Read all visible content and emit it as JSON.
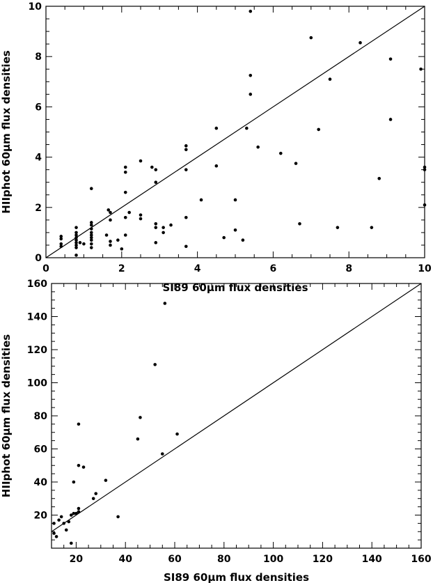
{
  "chart_data": [
    {
      "type": "scatter",
      "xlabel": "SI89 60μm flux densities",
      "ylabel": "HIIphot 60μm flux densities",
      "xlim": [
        0,
        10
      ],
      "ylim": [
        0,
        10
      ],
      "xticks": [
        0,
        2,
        4,
        6,
        8,
        10
      ],
      "yticks": [
        0,
        2,
        4,
        6,
        8,
        10
      ],
      "reference_line": "y = x",
      "points": [
        [
          0.4,
          0.85
        ],
        [
          0.4,
          0.75
        ],
        [
          0.4,
          0.55
        ],
        [
          0.4,
          0.45
        ],
        [
          0.8,
          1.2
        ],
        [
          0.8,
          1.0
        ],
        [
          0.8,
          0.9
        ],
        [
          0.8,
          0.8
        ],
        [
          0.8,
          0.7
        ],
        [
          0.8,
          0.6
        ],
        [
          0.8,
          0.5
        ],
        [
          0.8,
          0.4
        ],
        [
          0.8,
          0.1
        ],
        [
          0.9,
          0.6
        ],
        [
          1.0,
          0.55
        ],
        [
          1.2,
          2.75
        ],
        [
          1.2,
          1.4
        ],
        [
          1.2,
          1.3
        ],
        [
          1.2,
          1.15
        ],
        [
          1.2,
          1.0
        ],
        [
          1.2,
          0.9
        ],
        [
          1.2,
          0.8
        ],
        [
          1.2,
          0.7
        ],
        [
          1.2,
          0.55
        ],
        [
          1.2,
          0.4
        ],
        [
          1.6,
          0.9
        ],
        [
          1.65,
          1.9
        ],
        [
          1.7,
          1.8
        ],
        [
          1.7,
          1.5
        ],
        [
          1.7,
          0.65
        ],
        [
          1.7,
          0.5
        ],
        [
          1.9,
          0.7
        ],
        [
          2.0,
          0.35
        ],
        [
          2.1,
          3.6
        ],
        [
          2.1,
          3.4
        ],
        [
          2.1,
          2.6
        ],
        [
          2.1,
          1.6
        ],
        [
          2.1,
          0.9
        ],
        [
          2.2,
          1.8
        ],
        [
          2.5,
          3.85
        ],
        [
          2.5,
          1.7
        ],
        [
          2.5,
          1.55
        ],
        [
          2.8,
          3.6
        ],
        [
          2.9,
          3.5
        ],
        [
          2.9,
          3.0
        ],
        [
          2.9,
          1.35
        ],
        [
          2.9,
          1.2
        ],
        [
          2.9,
          0.6
        ],
        [
          3.1,
          1.2
        ],
        [
          3.1,
          1.0
        ],
        [
          3.3,
          1.3
        ],
        [
          3.7,
          4.45
        ],
        [
          3.7,
          4.3
        ],
        [
          3.7,
          3.5
        ],
        [
          3.7,
          1.6
        ],
        [
          3.7,
          0.45
        ],
        [
          4.1,
          2.3
        ],
        [
          4.5,
          5.15
        ],
        [
          4.5,
          3.65
        ],
        [
          4.7,
          0.8
        ],
        [
          5.0,
          2.3
        ],
        [
          5.0,
          1.1
        ],
        [
          5.2,
          0.7
        ],
        [
          5.3,
          5.15
        ],
        [
          5.4,
          9.8
        ],
        [
          5.4,
          7.25
        ],
        [
          5.4,
          6.5
        ],
        [
          5.6,
          4.4
        ],
        [
          6.2,
          4.15
        ],
        [
          6.6,
          3.75
        ],
        [
          6.7,
          1.35
        ],
        [
          7.0,
          8.75
        ],
        [
          7.2,
          5.1
        ],
        [
          7.5,
          7.1
        ],
        [
          7.7,
          1.2
        ],
        [
          8.3,
          8.55
        ],
        [
          8.6,
          1.2
        ],
        [
          8.8,
          3.15
        ],
        [
          9.1,
          7.9
        ],
        [
          9.1,
          5.5
        ],
        [
          9.9,
          7.5
        ],
        [
          10.0,
          3.6
        ],
        [
          10.0,
          3.5
        ],
        [
          10.0,
          2.1
        ]
      ]
    },
    {
      "type": "scatter",
      "xlabel": "SI89 60μm flux densities",
      "ylabel": "HIIphot 60μm flux densities",
      "xlim": [
        10,
        160
      ],
      "ylim": [
        0,
        160
      ],
      "xticks": [
        20,
        40,
        60,
        80,
        100,
        120,
        140,
        160
      ],
      "yticks": [
        20,
        40,
        60,
        80,
        100,
        120,
        140,
        160
      ],
      "reference_line": "y = x",
      "points": [
        [
          11,
          15
        ],
        [
          11,
          9
        ],
        [
          12,
          7
        ],
        [
          13,
          17
        ],
        [
          14,
          19
        ],
        [
          15,
          15
        ],
        [
          16,
          11
        ],
        [
          17,
          16
        ],
        [
          18,
          20
        ],
        [
          18,
          3
        ],
        [
          19,
          21
        ],
        [
          19,
          40
        ],
        [
          20,
          21
        ],
        [
          21,
          75
        ],
        [
          21,
          50
        ],
        [
          21,
          24
        ],
        [
          21,
          22
        ],
        [
          23,
          49
        ],
        [
          27,
          30
        ],
        [
          28,
          33
        ],
        [
          32,
          41
        ],
        [
          37,
          19
        ],
        [
          45,
          66
        ],
        [
          46,
          79
        ],
        [
          52,
          111
        ],
        [
          55,
          57
        ],
        [
          56,
          148
        ],
        [
          61,
          69
        ]
      ]
    }
  ]
}
